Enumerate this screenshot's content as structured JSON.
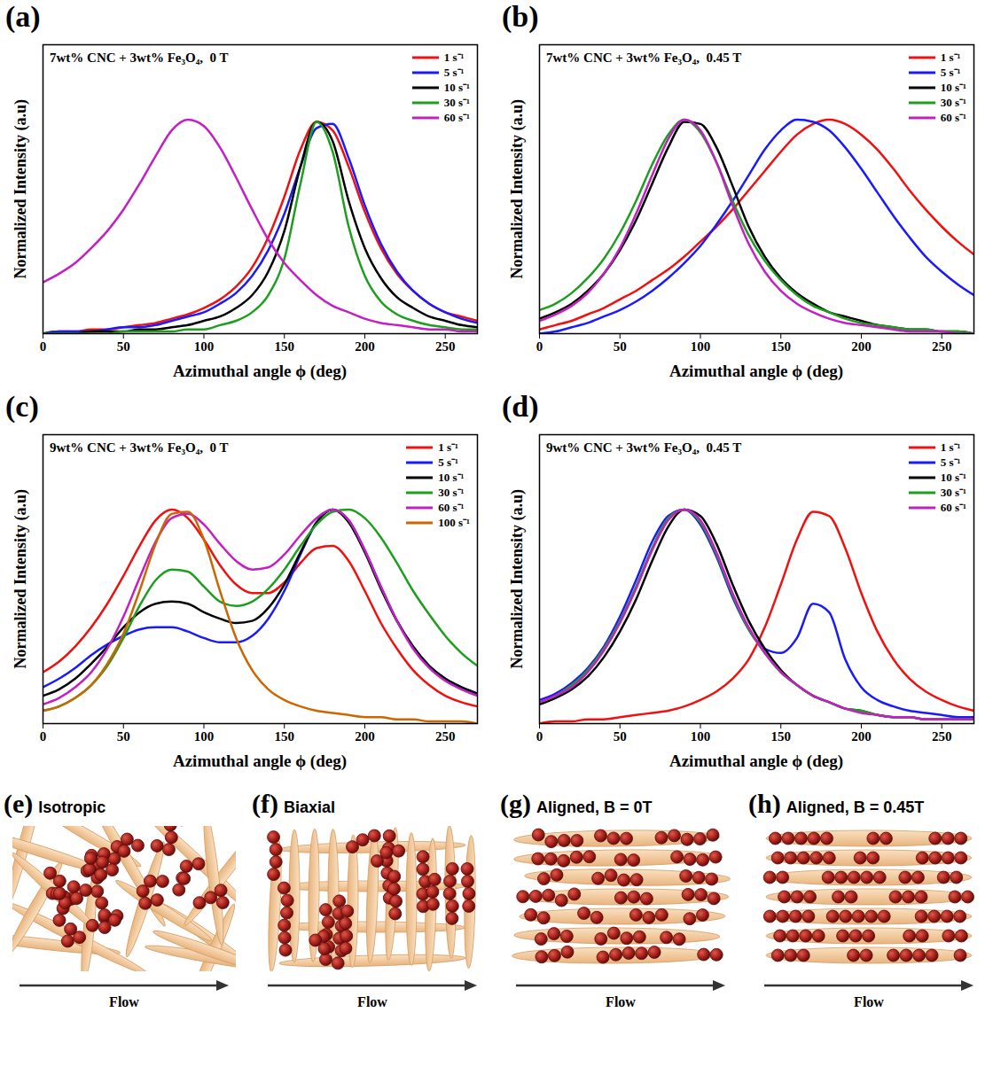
{
  "chart_data": [
    {
      "type": "line",
      "label": "(a)",
      "title": "7wt% CNC + 3wt% Fe₃O₄,  0 T",
      "xlabel": "Azimuthal angle ϕ (deg)",
      "ylabel": "Normalized Intensity (a.u)",
      "x": [
        0,
        10,
        20,
        30,
        40,
        50,
        60,
        70,
        80,
        90,
        100,
        110,
        120,
        130,
        140,
        150,
        160,
        170,
        180,
        190,
        200,
        210,
        220,
        230,
        240,
        250,
        260,
        270
      ],
      "xlim": [
        0,
        270
      ],
      "xticks": [
        0,
        50,
        100,
        150,
        200,
        250
      ],
      "ylim": [
        0,
        1.35
      ],
      "yticks": [],
      "tick_labels": "x",
      "legend": "top-right",
      "series": [
        {
          "name": "1 s⁻¹",
          "color": "#f01010",
          "values": [
            0.0,
            0.01,
            0.01,
            0.02,
            0.02,
            0.03,
            0.04,
            0.05,
            0.07,
            0.09,
            0.12,
            0.16,
            0.22,
            0.31,
            0.45,
            0.64,
            0.86,
            0.99,
            0.95,
            0.78,
            0.57,
            0.4,
            0.28,
            0.2,
            0.14,
            0.1,
            0.08,
            0.06
          ]
        },
        {
          "name": "5 s⁻¹",
          "color": "#1a1aff",
          "values": [
            0.0,
            0.01,
            0.01,
            0.01,
            0.02,
            0.03,
            0.03,
            0.04,
            0.06,
            0.08,
            0.1,
            0.14,
            0.19,
            0.27,
            0.39,
            0.56,
            0.78,
            0.96,
            0.98,
            0.82,
            0.6,
            0.42,
            0.29,
            0.2,
            0.14,
            0.1,
            0.07,
            0.05
          ]
        },
        {
          "name": "10 s⁻¹",
          "color": "#000000",
          "values": [
            0.0,
            0.0,
            0.0,
            0.01,
            0.01,
            0.01,
            0.02,
            0.02,
            0.03,
            0.04,
            0.06,
            0.08,
            0.12,
            0.18,
            0.29,
            0.48,
            0.78,
            0.99,
            0.9,
            0.62,
            0.4,
            0.26,
            0.17,
            0.12,
            0.08,
            0.06,
            0.04,
            0.03
          ]
        },
        {
          "name": "30 s⁻¹",
          "color": "#1e9e1e",
          "values": [
            0.0,
            0.0,
            0.0,
            0.0,
            0.0,
            0.01,
            0.01,
            0.01,
            0.01,
            0.02,
            0.02,
            0.04,
            0.06,
            0.1,
            0.18,
            0.35,
            0.7,
            0.99,
            0.85,
            0.5,
            0.27,
            0.15,
            0.09,
            0.06,
            0.04,
            0.03,
            0.02,
            0.02
          ]
        },
        {
          "name": "60 s⁻¹",
          "color": "#c31fc3",
          "values": [
            0.24,
            0.28,
            0.33,
            0.4,
            0.48,
            0.58,
            0.7,
            0.83,
            0.95,
            1.0,
            0.97,
            0.87,
            0.73,
            0.58,
            0.44,
            0.33,
            0.25,
            0.18,
            0.13,
            0.1,
            0.07,
            0.05,
            0.04,
            0.03,
            0.02,
            0.02,
            0.01,
            0.01
          ]
        }
      ]
    },
    {
      "type": "line",
      "label": "(b)",
      "title": "7wt% CNC + 3wt% Fe₃O₄,  0.45 T",
      "xlabel": "Azimuthal angle ϕ (deg)",
      "ylabel": "Normalized Intensity (a.u)",
      "x": [
        0,
        10,
        20,
        30,
        40,
        50,
        60,
        70,
        80,
        90,
        100,
        110,
        120,
        130,
        140,
        150,
        160,
        170,
        180,
        190,
        200,
        210,
        220,
        230,
        240,
        250,
        260,
        270
      ],
      "xlim": [
        0,
        270
      ],
      "xticks": [
        0,
        50,
        100,
        150,
        200,
        250
      ],
      "ylim": [
        0,
        1.35
      ],
      "yticks": [],
      "tick_labels": "x",
      "legend": "top-right",
      "series": [
        {
          "name": "1 s⁻¹",
          "color": "#f01010",
          "values": [
            0.02,
            0.04,
            0.06,
            0.09,
            0.12,
            0.16,
            0.2,
            0.25,
            0.3,
            0.36,
            0.43,
            0.5,
            0.58,
            0.67,
            0.76,
            0.85,
            0.93,
            0.98,
            1.0,
            0.98,
            0.93,
            0.86,
            0.77,
            0.67,
            0.58,
            0.5,
            0.43,
            0.37
          ]
        },
        {
          "name": "5 s⁻¹",
          "color": "#1a1aff",
          "values": [
            0.0,
            0.01,
            0.03,
            0.05,
            0.08,
            0.11,
            0.15,
            0.2,
            0.26,
            0.33,
            0.41,
            0.51,
            0.62,
            0.74,
            0.86,
            0.95,
            1.0,
            0.99,
            0.95,
            0.87,
            0.77,
            0.66,
            0.55,
            0.45,
            0.36,
            0.29,
            0.23,
            0.18
          ]
        },
        {
          "name": "10 s⁻¹",
          "color": "#000000",
          "values": [
            0.07,
            0.1,
            0.14,
            0.2,
            0.28,
            0.39,
            0.53,
            0.7,
            0.87,
            0.99,
            0.98,
            0.87,
            0.69,
            0.5,
            0.36,
            0.26,
            0.19,
            0.14,
            0.1,
            0.08,
            0.06,
            0.04,
            0.03,
            0.02,
            0.02,
            0.01,
            0.01,
            0.0
          ]
        },
        {
          "name": "30 s⁻¹",
          "color": "#1e9e1e",
          "values": [
            0.11,
            0.14,
            0.19,
            0.26,
            0.35,
            0.47,
            0.62,
            0.79,
            0.93,
            1.0,
            0.94,
            0.8,
            0.62,
            0.46,
            0.34,
            0.25,
            0.18,
            0.13,
            0.1,
            0.07,
            0.05,
            0.04,
            0.03,
            0.02,
            0.02,
            0.01,
            0.01,
            0.0
          ]
        },
        {
          "name": "60 s⁻¹",
          "color": "#c31fc3",
          "values": [
            0.06,
            0.09,
            0.13,
            0.19,
            0.28,
            0.4,
            0.56,
            0.74,
            0.91,
            1.0,
            0.95,
            0.8,
            0.6,
            0.42,
            0.29,
            0.2,
            0.14,
            0.1,
            0.07,
            0.05,
            0.04,
            0.03,
            0.02,
            0.01,
            0.01,
            0.01,
            0.0,
            0.0
          ]
        }
      ]
    },
    {
      "type": "line",
      "label": "(c)",
      "title": "9wt% CNC + 3wt% Fe₃O₄,  0 T",
      "xlabel": "Azimuthal angle ϕ (deg)",
      "ylabel": "Normalized Intensity (a.u)",
      "x": [
        0,
        10,
        20,
        30,
        40,
        50,
        60,
        70,
        80,
        90,
        100,
        110,
        120,
        130,
        140,
        150,
        160,
        170,
        180,
        190,
        200,
        210,
        220,
        230,
        240,
        250,
        260,
        270
      ],
      "xlim": [
        0,
        270
      ],
      "xticks": [
        0,
        50,
        100,
        150,
        200,
        250
      ],
      "ylim": [
        0,
        1.35
      ],
      "yticks": [],
      "tick_labels": "x",
      "legend": "top-right",
      "series": [
        {
          "name": "1 s⁻¹",
          "color": "#f01010",
          "values": [
            0.24,
            0.29,
            0.36,
            0.45,
            0.56,
            0.69,
            0.83,
            0.95,
            1.0,
            0.96,
            0.86,
            0.74,
            0.65,
            0.61,
            0.61,
            0.66,
            0.75,
            0.82,
            0.83,
            0.76,
            0.62,
            0.47,
            0.35,
            0.25,
            0.18,
            0.13,
            0.1,
            0.08
          ]
        },
        {
          "name": "5 s⁻¹",
          "color": "#1a1aff",
          "values": [
            0.17,
            0.21,
            0.26,
            0.32,
            0.37,
            0.41,
            0.44,
            0.45,
            0.45,
            0.43,
            0.4,
            0.38,
            0.38,
            0.41,
            0.49,
            0.62,
            0.79,
            0.94,
            1.0,
            0.95,
            0.81,
            0.64,
            0.48,
            0.36,
            0.27,
            0.21,
            0.17,
            0.14
          ]
        },
        {
          "name": "10 s⁻¹",
          "color": "#000000",
          "values": [
            0.13,
            0.16,
            0.21,
            0.28,
            0.36,
            0.45,
            0.52,
            0.56,
            0.57,
            0.56,
            0.52,
            0.49,
            0.47,
            0.48,
            0.54,
            0.65,
            0.8,
            0.94,
            1.0,
            0.94,
            0.8,
            0.63,
            0.48,
            0.36,
            0.27,
            0.21,
            0.17,
            0.14
          ]
        },
        {
          "name": "30 s⁻¹",
          "color": "#1e9e1e",
          "values": [
            0.06,
            0.08,
            0.12,
            0.18,
            0.27,
            0.4,
            0.55,
            0.67,
            0.72,
            0.71,
            0.64,
            0.57,
            0.55,
            0.57,
            0.63,
            0.72,
            0.83,
            0.93,
            0.99,
            1.0,
            0.96,
            0.87,
            0.75,
            0.62,
            0.51,
            0.41,
            0.33,
            0.27
          ]
        },
        {
          "name": "60 s⁻¹",
          "color": "#c31fc3",
          "values": [
            0.09,
            0.12,
            0.17,
            0.24,
            0.35,
            0.5,
            0.68,
            0.85,
            0.96,
            0.98,
            0.93,
            0.84,
            0.76,
            0.72,
            0.73,
            0.79,
            0.88,
            0.96,
            1.0,
            0.95,
            0.81,
            0.64,
            0.48,
            0.35,
            0.26,
            0.2,
            0.16,
            0.13
          ]
        },
        {
          "name": "100 s⁻¹",
          "color": "#cc6600",
          "values": [
            0.06,
            0.08,
            0.12,
            0.18,
            0.28,
            0.42,
            0.62,
            0.84,
            0.98,
            0.99,
            0.86,
            0.62,
            0.4,
            0.25,
            0.16,
            0.11,
            0.08,
            0.06,
            0.05,
            0.04,
            0.03,
            0.03,
            0.02,
            0.02,
            0.01,
            0.01,
            0.01,
            0.0
          ]
        }
      ]
    },
    {
      "type": "line",
      "label": "(d)",
      "title": "9wt% CNC + 3wt% Fe₃O₄,  0.45 T",
      "xlabel": "Azimuthal angle ϕ (deg)",
      "ylabel": "Normalized Intensity (a.u)",
      "x": [
        0,
        10,
        20,
        30,
        40,
        50,
        60,
        70,
        80,
        90,
        100,
        110,
        120,
        130,
        140,
        150,
        160,
        170,
        180,
        190,
        200,
        210,
        220,
        230,
        240,
        250,
        260,
        270
      ],
      "xlim": [
        0,
        270
      ],
      "xticks": [
        0,
        50,
        100,
        150,
        200,
        250
      ],
      "ylim": [
        0,
        1.35
      ],
      "yticks": [],
      "tick_labels": "x",
      "legend": "top-right",
      "series": [
        {
          "name": "1 s⁻¹",
          "color": "#f01010",
          "values": [
            0.0,
            0.01,
            0.01,
            0.02,
            0.02,
            0.03,
            0.04,
            0.05,
            0.06,
            0.08,
            0.11,
            0.15,
            0.21,
            0.3,
            0.45,
            0.65,
            0.86,
            0.99,
            0.97,
            0.82,
            0.61,
            0.43,
            0.3,
            0.21,
            0.15,
            0.11,
            0.08,
            0.06
          ]
        },
        {
          "name": "5 s⁻¹",
          "color": "#1a1aff",
          "values": [
            0.11,
            0.14,
            0.19,
            0.26,
            0.36,
            0.5,
            0.67,
            0.85,
            0.97,
            1.0,
            0.93,
            0.78,
            0.59,
            0.44,
            0.35,
            0.33,
            0.4,
            0.56,
            0.52,
            0.3,
            0.17,
            0.11,
            0.08,
            0.06,
            0.05,
            0.04,
            0.03,
            0.03
          ]
        },
        {
          "name": "10 s⁻¹",
          "color": "#000000",
          "values": [
            0.09,
            0.12,
            0.16,
            0.22,
            0.31,
            0.43,
            0.58,
            0.76,
            0.92,
            1.0,
            0.97,
            0.84,
            0.65,
            0.48,
            0.35,
            0.25,
            0.18,
            0.13,
            0.1,
            0.07,
            0.06,
            0.04,
            0.03,
            0.03,
            0.02,
            0.02,
            0.02,
            0.02
          ]
        },
        {
          "name": "30 s⁻¹",
          "color": "#1e9e1e",
          "values": [
            0.1,
            0.13,
            0.18,
            0.25,
            0.35,
            0.48,
            0.64,
            0.82,
            0.96,
            1.0,
            0.94,
            0.79,
            0.6,
            0.44,
            0.33,
            0.24,
            0.18,
            0.13,
            0.1,
            0.07,
            0.06,
            0.04,
            0.03,
            0.03,
            0.02,
            0.02,
            0.02,
            0.02
          ]
        },
        {
          "name": "60 s⁻¹",
          "color": "#c31fc3",
          "values": [
            0.1,
            0.13,
            0.17,
            0.24,
            0.34,
            0.47,
            0.63,
            0.81,
            0.95,
            1.0,
            0.95,
            0.8,
            0.61,
            0.45,
            0.33,
            0.24,
            0.18,
            0.13,
            0.1,
            0.07,
            0.05,
            0.04,
            0.03,
            0.03,
            0.02,
            0.02,
            0.02,
            0.02
          ]
        }
      ]
    }
  ],
  "diagrams": [
    {
      "label": "(e)",
      "title": "Isotropic",
      "arrow_label": "Flow"
    },
    {
      "label": "(f)",
      "title": "Biaxial",
      "arrow_label": "Flow"
    },
    {
      "label": "(g)",
      "title": "Aligned, B = 0T",
      "arrow_label": "Flow"
    },
    {
      "label": "(h)",
      "title": "Aligned, B = 0.45T",
      "arrow_label": "Flow"
    }
  ]
}
